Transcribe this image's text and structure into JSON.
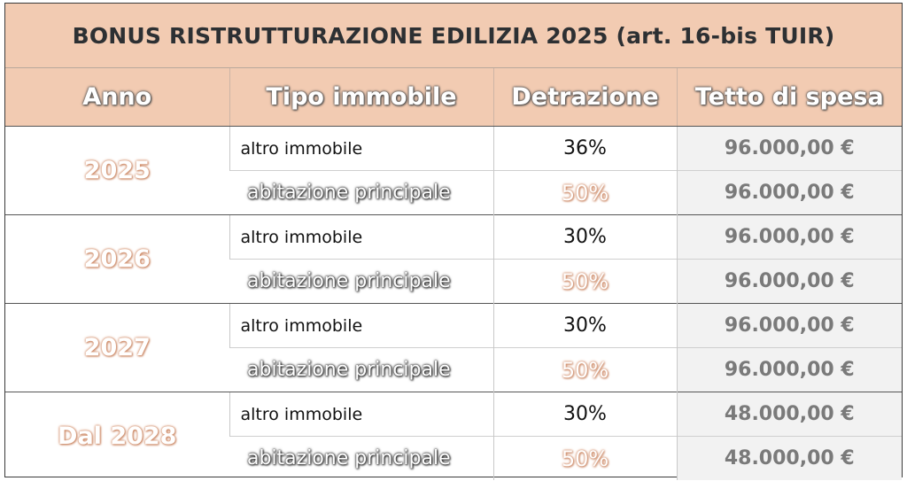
{
  "title": "BONUS RISTRUTTURAZIONE EDILIZIA 2025 (art. 16-bis TUIR)",
  "headers": {
    "anno": "Anno",
    "tipo": "Tipo immobile",
    "detrazione": "Detrazione",
    "tetto": "Tetto di spesa"
  },
  "groups": [
    {
      "anno": "2025",
      "rows": [
        {
          "tipo": "altro immobile",
          "detrazione": "36%",
          "tetto": "96.000,00 €"
        },
        {
          "tipo": "abitazione principale",
          "detrazione": "50%",
          "tetto": "96.000,00 €"
        }
      ]
    },
    {
      "anno": "2026",
      "rows": [
        {
          "tipo": "altro immobile",
          "detrazione": "30%",
          "tetto": "96.000,00 €"
        },
        {
          "tipo": "abitazione principale",
          "detrazione": "50%",
          "tetto": "96.000,00 €"
        }
      ]
    },
    {
      "anno": "2027",
      "rows": [
        {
          "tipo": "altro immobile",
          "detrazione": "30%",
          "tetto": "96.000,00 €"
        },
        {
          "tipo": "abitazione principale",
          "detrazione": "50%",
          "tetto": "96.000,00 €"
        }
      ]
    },
    {
      "anno": "Dal 2028",
      "rows": [
        {
          "tipo": "altro immobile",
          "detrazione": "30%",
          "tetto": "48.000,00 €"
        },
        {
          "tipo": "abitazione principale",
          "detrazione": "50%",
          "tetto": "48.000,00 €"
        }
      ]
    }
  ]
}
